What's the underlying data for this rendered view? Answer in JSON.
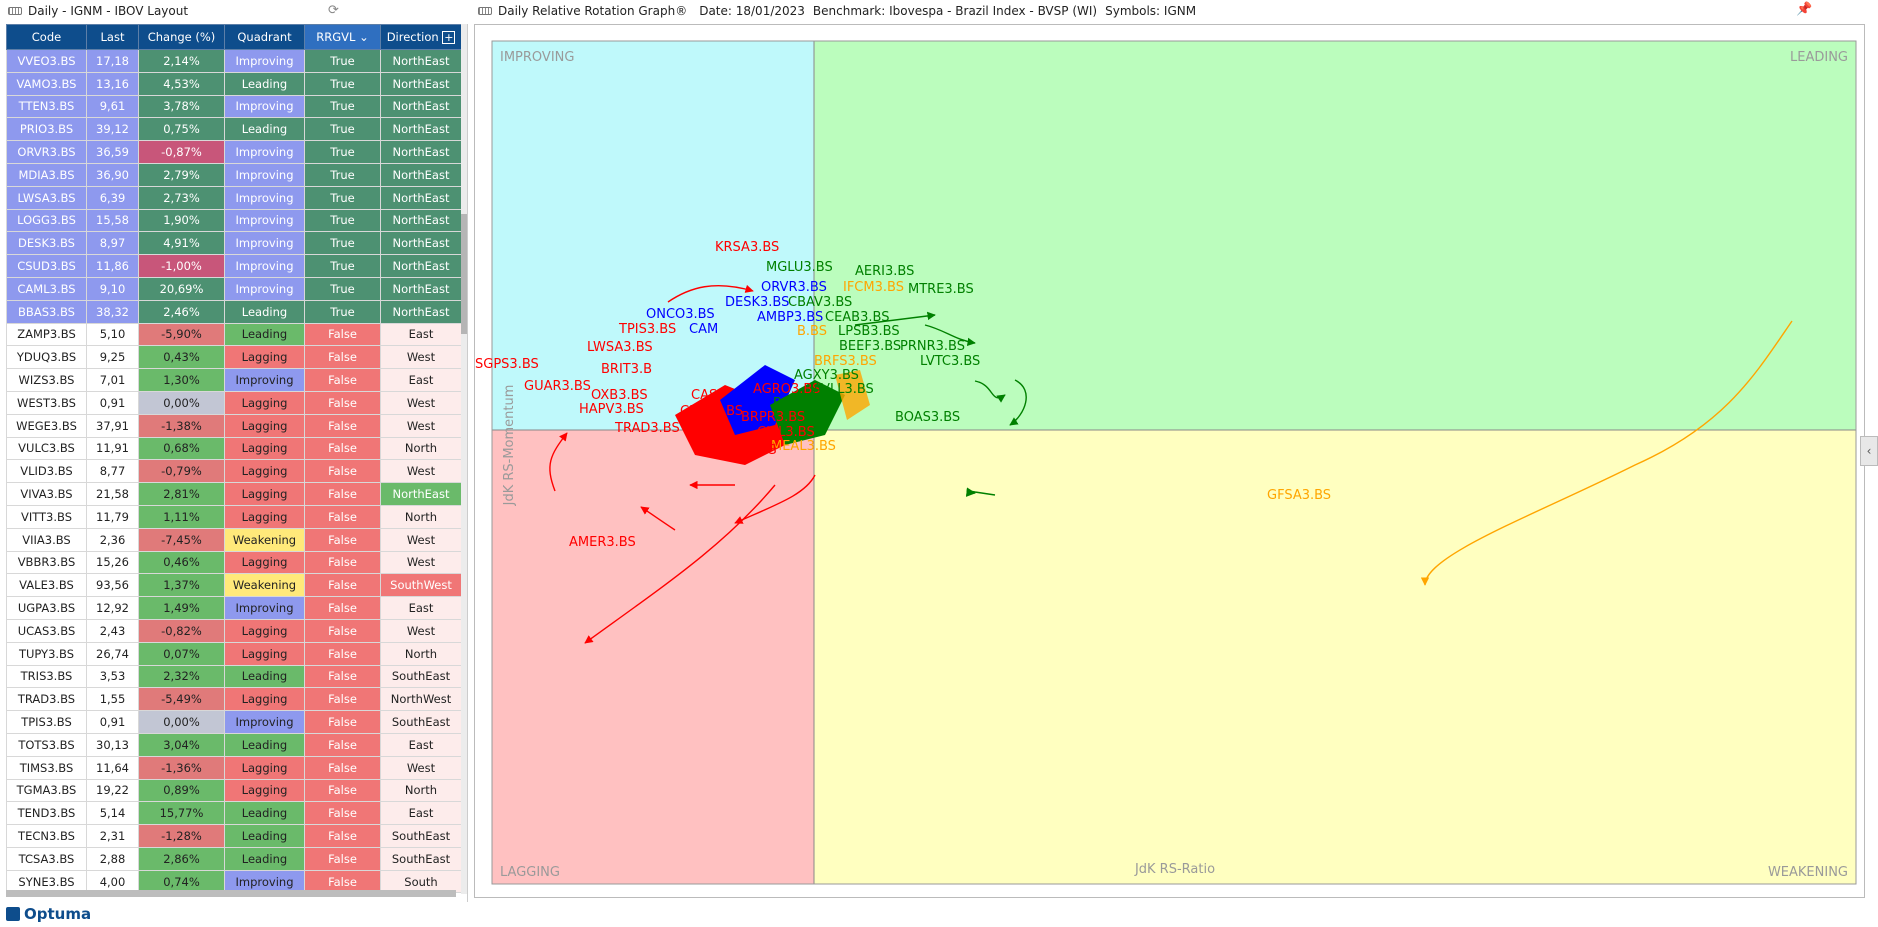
{
  "left_title": "Daily - IGNM - IBOV Layout",
  "chart_header": {
    "title": "Daily Relative Rotation Graph®",
    "date": "Date: 18/01/2023",
    "benchmark": "Benchmark: Ibovespa - Brazil Index - BVSP (WI)",
    "symbols": "Symbols: IGNM"
  },
  "table": {
    "headers": [
      "Code",
      "Last",
      "Change (%)",
      "Quadrant",
      "RRGVL",
      "Direction"
    ],
    "rows": [
      {
        "code": "VVEO3.BS",
        "last": "17,18",
        "change": "2,14%",
        "quadrant": "Improving",
        "rrgvl": "True",
        "direction": "NorthEast"
      },
      {
        "code": "VAMO3.BS",
        "last": "13,16",
        "change": "4,53%",
        "quadrant": "Leading",
        "rrgvl": "True",
        "direction": "NorthEast"
      },
      {
        "code": "TTEN3.BS",
        "last": "9,61",
        "change": "3,78%",
        "quadrant": "Improving",
        "rrgvl": "True",
        "direction": "NorthEast"
      },
      {
        "code": "PRIO3.BS",
        "last": "39,12",
        "change": "0,75%",
        "quadrant": "Leading",
        "rrgvl": "True",
        "direction": "NorthEast"
      },
      {
        "code": "ORVR3.BS",
        "last": "36,59",
        "change": "-0,87%",
        "quadrant": "Improving",
        "rrgvl": "True",
        "direction": "NorthEast"
      },
      {
        "code": "MDIA3.BS",
        "last": "36,90",
        "change": "2,79%",
        "quadrant": "Improving",
        "rrgvl": "True",
        "direction": "NorthEast"
      },
      {
        "code": "LWSA3.BS",
        "last": "6,39",
        "change": "2,73%",
        "quadrant": "Improving",
        "rrgvl": "True",
        "direction": "NorthEast"
      },
      {
        "code": "LOGG3.BS",
        "last": "15,58",
        "change": "1,90%",
        "quadrant": "Improving",
        "rrgvl": "True",
        "direction": "NorthEast"
      },
      {
        "code": "DESK3.BS",
        "last": "8,97",
        "change": "4,91%",
        "quadrant": "Improving",
        "rrgvl": "True",
        "direction": "NorthEast"
      },
      {
        "code": "CSUD3.BS",
        "last": "11,86",
        "change": "-1,00%",
        "quadrant": "Improving",
        "rrgvl": "True",
        "direction": "NorthEast"
      },
      {
        "code": "CAML3.BS",
        "last": "9,10",
        "change": "20,69%",
        "quadrant": "Improving",
        "rrgvl": "True",
        "direction": "NorthEast"
      },
      {
        "code": "BBAS3.BS",
        "last": "38,32",
        "change": "2,46%",
        "quadrant": "Leading",
        "rrgvl": "True",
        "direction": "NorthEast"
      },
      {
        "code": "ZAMP3.BS",
        "last": "5,10",
        "change": "-5,90%",
        "quadrant": "Leading",
        "rrgvl": "False",
        "direction": "East"
      },
      {
        "code": "YDUQ3.BS",
        "last": "9,25",
        "change": "0,43%",
        "quadrant": "Lagging",
        "rrgvl": "False",
        "direction": "West"
      },
      {
        "code": "WIZS3.BS",
        "last": "7,01",
        "change": "1,30%",
        "quadrant": "Improving",
        "rrgvl": "False",
        "direction": "East"
      },
      {
        "code": "WEST3.BS",
        "last": "0,91",
        "change": "0,00%",
        "quadrant": "Lagging",
        "rrgvl": "False",
        "direction": "West"
      },
      {
        "code": "WEGE3.BS",
        "last": "37,91",
        "change": "-1,38%",
        "quadrant": "Lagging",
        "rrgvl": "False",
        "direction": "West"
      },
      {
        "code": "VULC3.BS",
        "last": "11,91",
        "change": "0,68%",
        "quadrant": "Lagging",
        "rrgvl": "False",
        "direction": "North"
      },
      {
        "code": "VLID3.BS",
        "last": "8,77",
        "change": "-0,79%",
        "quadrant": "Lagging",
        "rrgvl": "False",
        "direction": "West"
      },
      {
        "code": "VIVA3.BS",
        "last": "21,58",
        "change": "2,81%",
        "quadrant": "Lagging",
        "rrgvl": "False",
        "direction": "NorthEast"
      },
      {
        "code": "VITT3.BS",
        "last": "11,79",
        "change": "1,11%",
        "quadrant": "Lagging",
        "rrgvl": "False",
        "direction": "North"
      },
      {
        "code": "VIIA3.BS",
        "last": "2,36",
        "change": "-7,45%",
        "quadrant": "Weakening",
        "rrgvl": "False",
        "direction": "West"
      },
      {
        "code": "VBBR3.BS",
        "last": "15,26",
        "change": "0,46%",
        "quadrant": "Lagging",
        "rrgvl": "False",
        "direction": "West"
      },
      {
        "code": "VALE3.BS",
        "last": "93,56",
        "change": "1,37%",
        "quadrant": "Weakening",
        "rrgvl": "False",
        "direction": "SouthWest"
      },
      {
        "code": "UGPA3.BS",
        "last": "12,92",
        "change": "1,49%",
        "quadrant": "Improving",
        "rrgvl": "False",
        "direction": "East"
      },
      {
        "code": "UCAS3.BS",
        "last": "2,43",
        "change": "-0,82%",
        "quadrant": "Lagging",
        "rrgvl": "False",
        "direction": "West"
      },
      {
        "code": "TUPY3.BS",
        "last": "26,74",
        "change": "0,07%",
        "quadrant": "Lagging",
        "rrgvl": "False",
        "direction": "North"
      },
      {
        "code": "TRIS3.BS",
        "last": "3,53",
        "change": "2,32%",
        "quadrant": "Leading",
        "rrgvl": "False",
        "direction": "SouthEast"
      },
      {
        "code": "TRAD3.BS",
        "last": "1,55",
        "change": "-5,49%",
        "quadrant": "Lagging",
        "rrgvl": "False",
        "direction": "NorthWest"
      },
      {
        "code": "TPIS3.BS",
        "last": "0,91",
        "change": "0,00%",
        "quadrant": "Improving",
        "rrgvl": "False",
        "direction": "SouthEast"
      },
      {
        "code": "TOTS3.BS",
        "last": "30,13",
        "change": "3,04%",
        "quadrant": "Leading",
        "rrgvl": "False",
        "direction": "East"
      },
      {
        "code": "TIMS3.BS",
        "last": "11,64",
        "change": "-1,36%",
        "quadrant": "Lagging",
        "rrgvl": "False",
        "direction": "West"
      },
      {
        "code": "TGMA3.BS",
        "last": "19,22",
        "change": "0,89%",
        "quadrant": "Lagging",
        "rrgvl": "False",
        "direction": "North"
      },
      {
        "code": "TEND3.BS",
        "last": "5,14",
        "change": "15,77%",
        "quadrant": "Leading",
        "rrgvl": "False",
        "direction": "East"
      },
      {
        "code": "TECN3.BS",
        "last": "2,31",
        "change": "-1,28%",
        "quadrant": "Leading",
        "rrgvl": "False",
        "direction": "SouthEast"
      },
      {
        "code": "TCSA3.BS",
        "last": "2,88",
        "change": "2,86%",
        "quadrant": "Leading",
        "rrgvl": "False",
        "direction": "SouthEast"
      },
      {
        "code": "SYNE3.BS",
        "last": "4,00",
        "change": "0,74%",
        "quadrant": "Improving",
        "rrgvl": "False",
        "direction": "South"
      }
    ]
  },
  "chart": {
    "quadrants": {
      "improving": "IMPROVING",
      "leading": "LEADING",
      "lagging": "LAGGING",
      "weakening": "WEAKENING"
    },
    "xlabel": "JdK RS-Ratio",
    "ylabel": "JdK RS-Momentum",
    "colors": {
      "improving": "#bff9fb",
      "leading": "#bbfdbd",
      "lagging": "#ffc1c1",
      "weakening": "#ffffc0",
      "red": "#ff0000",
      "blue": "#0000ff",
      "green": "#008000",
      "orange": "#ffa500"
    }
  },
  "chart_labels": [
    {
      "text": "KRSA3.BS",
      "color": "red"
    },
    {
      "text": "MGLU3.BS",
      "color": "green"
    },
    {
      "text": "AERI3.BS",
      "color": "green"
    },
    {
      "text": "ORVR3.BS",
      "color": "blue"
    },
    {
      "text": "IFCM3.BS",
      "color": "orange"
    },
    {
      "text": "MTRE3.BS",
      "color": "green"
    },
    {
      "text": "DESK3.BS",
      "color": "blue"
    },
    {
      "text": "CBAV3.BS",
      "color": "green"
    },
    {
      "text": "ONCO3.BS",
      "color": "blue"
    },
    {
      "text": "AMBP3.BS",
      "color": "blue"
    },
    {
      "text": "CEAB3.BS",
      "color": "green"
    },
    {
      "text": "TPIS3.BS",
      "color": "red"
    },
    {
      "text": "CAM",
      "color": "blue"
    },
    {
      "text": "B.BS",
      "color": "orange"
    },
    {
      "text": "LPSB3.BS",
      "color": "green"
    },
    {
      "text": "LWSA3.BS",
      "color": "red"
    },
    {
      "text": "BEEF3.BS",
      "color": "green"
    },
    {
      "text": "PRNR3.BS",
      "color": "green"
    },
    {
      "text": "BRFS3.BS",
      "color": "orange"
    },
    {
      "text": "LVTC3.BS",
      "color": "green"
    },
    {
      "text": "SGPS3.BS",
      "color": "red"
    },
    {
      "text": "BRIT3.B",
      "color": "red"
    },
    {
      "text": "AGXY3.BS",
      "color": "green"
    },
    {
      "text": "GUAR3.BS",
      "color": "red"
    },
    {
      "text": "AGRO3.BS",
      "color": "red"
    },
    {
      "text": "AVLL3.BS",
      "color": "green"
    },
    {
      "text": "CAS",
      "color": "red"
    },
    {
      "text": "OXB3.BS",
      "color": "red"
    },
    {
      "text": "B3SA3.BS",
      "color": "green"
    },
    {
      "text": "HAPV3.BS",
      "color": "red"
    },
    {
      "text": "CLSA3.BS",
      "color": "red"
    },
    {
      "text": "BOAS3.BS",
      "color": "green"
    },
    {
      "text": "BRPR3.BS",
      "color": "red"
    },
    {
      "text": "TRAD3.BS",
      "color": "red"
    },
    {
      "text": "CIEL3.BS",
      "color": "red"
    },
    {
      "text": "MEAL3.BS",
      "color": "orange"
    },
    {
      "text": "WEST3.BS",
      "color": "red"
    },
    {
      "text": "GFSA3.BS",
      "color": "orange"
    },
    {
      "text": "AMER3.BS",
      "color": "red"
    }
  ],
  "logo": "Optuma"
}
